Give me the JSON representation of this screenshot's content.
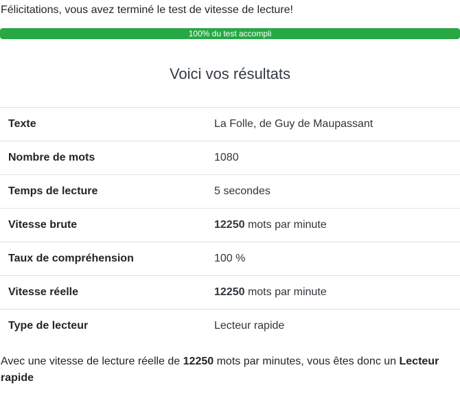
{
  "page": {
    "congrats_text": "Félicitations, vous avez terminé le test de vitesse de lecture!",
    "progress": {
      "percent": 100,
      "label": "100% du test accompli",
      "bar_color": "#28a745"
    },
    "title": "Voici vos résultats",
    "results_table": {
      "rows": [
        {
          "label": "Texte",
          "value_strong": "",
          "value_text": "La Folle, de Guy de Maupassant"
        },
        {
          "label": "Nombre de mots",
          "value_strong": "",
          "value_text": "1080"
        },
        {
          "label": "Temps de lecture",
          "value_strong": "",
          "value_text": "5 secondes"
        },
        {
          "label": "Vitesse brute",
          "value_strong": "12250",
          "value_text": " mots par minute"
        },
        {
          "label": "Taux de compréhension",
          "value_strong": "",
          "value_text": "100 %"
        },
        {
          "label": "Vitesse réelle",
          "value_strong": "12250",
          "value_text": " mots par minute"
        },
        {
          "label": "Type de lecteur",
          "value_strong": "",
          "value_text": "Lecteur rapide"
        }
      ]
    },
    "summary": {
      "text_before": "Avec une vitesse de lecture réelle de ",
      "speed_value": "12250",
      "text_middle": " mots par minutes, vous êtes donc un ",
      "reader_type": "Lecteur rapide"
    }
  }
}
